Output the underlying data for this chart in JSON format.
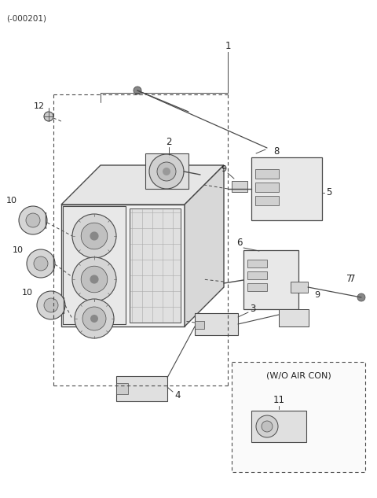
{
  "bg_color": "#ffffff",
  "line_color": "#4a4a4a",
  "text_color": "#222222",
  "fig_width": 4.8,
  "fig_height": 6.33,
  "dpi": 100,
  "header": "(-000201)",
  "wo_aircon_label": "(W/O AIR CON)"
}
